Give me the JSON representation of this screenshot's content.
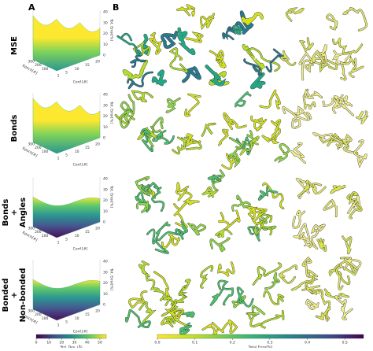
{
  "panel_labels": [
    "A",
    "B"
  ],
  "rows": [
    {
      "label": [
        "MSE"
      ]
    },
    {
      "label": [
        "Bonds"
      ]
    },
    {
      "label": [
        "Bonds",
        "+",
        "Angles"
      ]
    },
    {
      "label": [
        "Bonded",
        "+",
        "Non-bonded"
      ]
    }
  ],
  "axes": {
    "z_label": "Tot. Error[%]",
    "epoch_label": "Epoch[#]",
    "conf_label": "Conf.[#]",
    "z_ticks": [
      0,
      10,
      20,
      30,
      40
    ],
    "conf_ticks": [
      1,
      5,
      10,
      15,
      20
    ],
    "epoch_ticks": [
      100,
      200,
      300
    ]
  },
  "colorbars": [
    {
      "label": "Std. Dev. (Å)",
      "lim": [
        0,
        55
      ],
      "ticks": [
        0,
        10,
        20,
        30,
        40,
        50
      ]
    },
    {
      "label": "Total Error[%]",
      "lim": [
        0,
        0.55
      ],
      "ticks": [
        {
          "value": 0,
          "label": "0.0"
        },
        {
          "value": 0.1,
          "label": "0.1"
        },
        {
          "value": 0.2,
          "label": "0.2"
        },
        {
          "value": 0.3,
          "label": "0.3"
        },
        {
          "value": 0.4,
          "label": "0.4"
        },
        {
          "value": 0.5,
          "label": "0.5"
        }
      ]
    }
  ]
}
